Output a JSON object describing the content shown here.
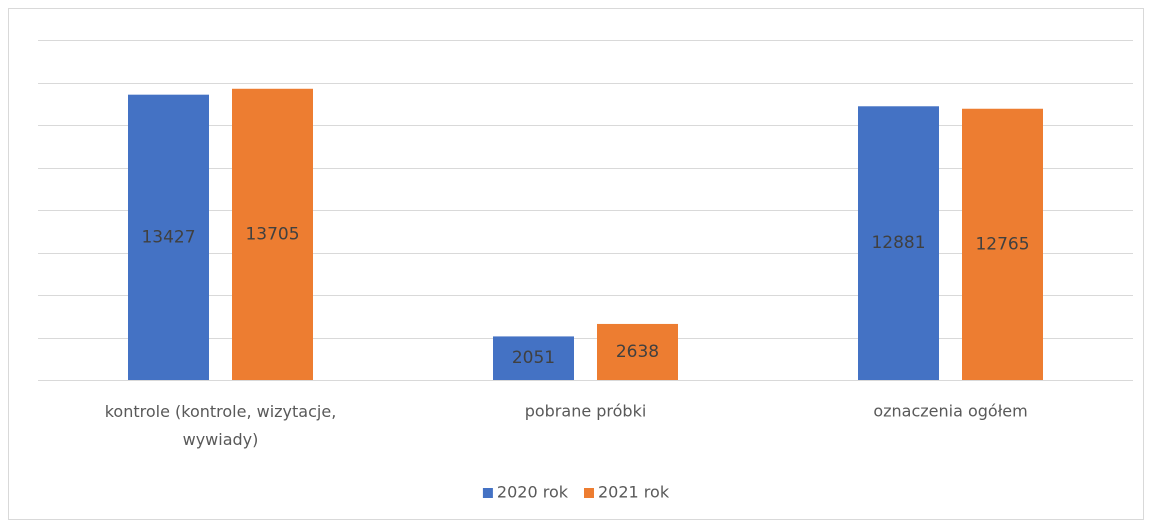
{
  "chart_data": {
    "type": "bar",
    "categories": [
      "kontrole (kontrole, wizytacje, wywiady)",
      "pobrane próbki",
      "oznaczenia ogółem"
    ],
    "series": [
      {
        "name": "2020 rok",
        "color": "#4472c4",
        "values": [
          13427,
          2051,
          12881
        ]
      },
      {
        "name": "2021 rok",
        "color": "#ed7d31",
        "values": [
          13705,
          2638,
          12765
        ]
      }
    ],
    "ylim": [
      0,
      16000
    ],
    "yticks": [
      0,
      2000,
      4000,
      6000,
      8000,
      10000,
      12000,
      14000,
      16000
    ],
    "grid": true,
    "legend": "bottom"
  }
}
